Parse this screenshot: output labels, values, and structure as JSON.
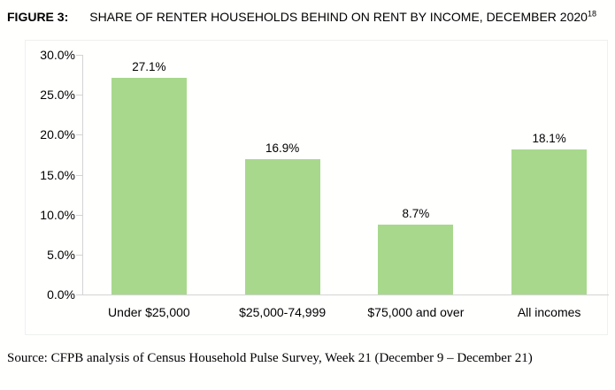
{
  "figure": {
    "label": "FIGURE 3:",
    "title": "SHARE OF RENTER HOUSEHOLDS BEHIND ON RENT BY INCOME, DECEMBER 2020",
    "title_superscript": "18"
  },
  "chart_data": {
    "type": "bar",
    "categories": [
      "Under $25,000",
      "$25,000-74,999",
      "$75,000 and over",
      "All incomes"
    ],
    "values": [
      27.1,
      16.9,
      8.7,
      18.1
    ],
    "value_labels": [
      "27.1%",
      "16.9%",
      "8.7%",
      "18.1%"
    ],
    "title": "SHARE OF RENTER HOUSEHOLDS BEHIND ON RENT BY INCOME, DECEMBER 2020",
    "xlabel": "",
    "ylabel": "",
    "ylim": [
      0,
      30
    ],
    "ytick_step": 5,
    "ytick_labels": [
      "0.0%",
      "5.0%",
      "10.0%",
      "15.0%",
      "20.0%",
      "25.0%",
      "30.0%"
    ],
    "grid": false,
    "legend": false,
    "bar_color": "#a8d88c",
    "axis_color": "#d3d3d3"
  },
  "source": "Source: CFPB analysis of Census Household Pulse Survey, Week 21 (December 9 – December 21)"
}
